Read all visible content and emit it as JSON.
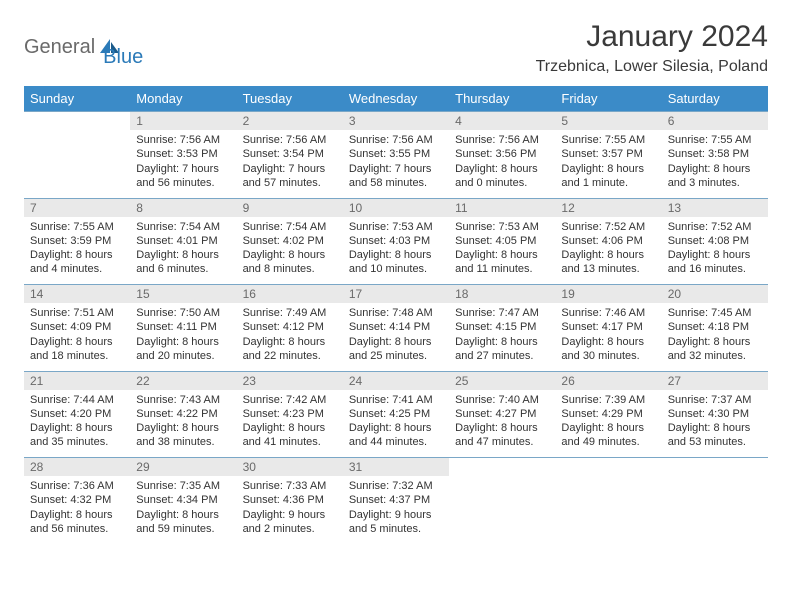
{
  "logo": {
    "text1": "General",
    "text2": "Blue"
  },
  "title": "January 2024",
  "location": "Trzebnica, Lower Silesia, Poland",
  "colors": {
    "header_bg": "#3b8bc8",
    "header_text": "#ffffff",
    "daynum_bg": "#e9e9e9",
    "daynum_text": "#6a6a6a",
    "border": "#7aa7c7",
    "body_text": "#333333",
    "logo_gray": "#6a6a6a",
    "logo_blue": "#2b7ab8",
    "page_bg": "#ffffff"
  },
  "typography": {
    "title_fontsize": 30,
    "location_fontsize": 16,
    "weekday_fontsize": 13,
    "daynum_fontsize": 12,
    "detail_fontsize": 11,
    "font_family": "Arial"
  },
  "weekdays": [
    "Sunday",
    "Monday",
    "Tuesday",
    "Wednesday",
    "Thursday",
    "Friday",
    "Saturday"
  ],
  "weeks": [
    [
      {
        "day": "",
        "sunrise": "",
        "sunset": "",
        "daylight": ""
      },
      {
        "day": "1",
        "sunrise": "Sunrise: 7:56 AM",
        "sunset": "Sunset: 3:53 PM",
        "daylight": "Daylight: 7 hours and 56 minutes."
      },
      {
        "day": "2",
        "sunrise": "Sunrise: 7:56 AM",
        "sunset": "Sunset: 3:54 PM",
        "daylight": "Daylight: 7 hours and 57 minutes."
      },
      {
        "day": "3",
        "sunrise": "Sunrise: 7:56 AM",
        "sunset": "Sunset: 3:55 PM",
        "daylight": "Daylight: 7 hours and 58 minutes."
      },
      {
        "day": "4",
        "sunrise": "Sunrise: 7:56 AM",
        "sunset": "Sunset: 3:56 PM",
        "daylight": "Daylight: 8 hours and 0 minutes."
      },
      {
        "day": "5",
        "sunrise": "Sunrise: 7:55 AM",
        "sunset": "Sunset: 3:57 PM",
        "daylight": "Daylight: 8 hours and 1 minute."
      },
      {
        "day": "6",
        "sunrise": "Sunrise: 7:55 AM",
        "sunset": "Sunset: 3:58 PM",
        "daylight": "Daylight: 8 hours and 3 minutes."
      }
    ],
    [
      {
        "day": "7",
        "sunrise": "Sunrise: 7:55 AM",
        "sunset": "Sunset: 3:59 PM",
        "daylight": "Daylight: 8 hours and 4 minutes."
      },
      {
        "day": "8",
        "sunrise": "Sunrise: 7:54 AM",
        "sunset": "Sunset: 4:01 PM",
        "daylight": "Daylight: 8 hours and 6 minutes."
      },
      {
        "day": "9",
        "sunrise": "Sunrise: 7:54 AM",
        "sunset": "Sunset: 4:02 PM",
        "daylight": "Daylight: 8 hours and 8 minutes."
      },
      {
        "day": "10",
        "sunrise": "Sunrise: 7:53 AM",
        "sunset": "Sunset: 4:03 PM",
        "daylight": "Daylight: 8 hours and 10 minutes."
      },
      {
        "day": "11",
        "sunrise": "Sunrise: 7:53 AM",
        "sunset": "Sunset: 4:05 PM",
        "daylight": "Daylight: 8 hours and 11 minutes."
      },
      {
        "day": "12",
        "sunrise": "Sunrise: 7:52 AM",
        "sunset": "Sunset: 4:06 PM",
        "daylight": "Daylight: 8 hours and 13 minutes."
      },
      {
        "day": "13",
        "sunrise": "Sunrise: 7:52 AM",
        "sunset": "Sunset: 4:08 PM",
        "daylight": "Daylight: 8 hours and 16 minutes."
      }
    ],
    [
      {
        "day": "14",
        "sunrise": "Sunrise: 7:51 AM",
        "sunset": "Sunset: 4:09 PM",
        "daylight": "Daylight: 8 hours and 18 minutes."
      },
      {
        "day": "15",
        "sunrise": "Sunrise: 7:50 AM",
        "sunset": "Sunset: 4:11 PM",
        "daylight": "Daylight: 8 hours and 20 minutes."
      },
      {
        "day": "16",
        "sunrise": "Sunrise: 7:49 AM",
        "sunset": "Sunset: 4:12 PM",
        "daylight": "Daylight: 8 hours and 22 minutes."
      },
      {
        "day": "17",
        "sunrise": "Sunrise: 7:48 AM",
        "sunset": "Sunset: 4:14 PM",
        "daylight": "Daylight: 8 hours and 25 minutes."
      },
      {
        "day": "18",
        "sunrise": "Sunrise: 7:47 AM",
        "sunset": "Sunset: 4:15 PM",
        "daylight": "Daylight: 8 hours and 27 minutes."
      },
      {
        "day": "19",
        "sunrise": "Sunrise: 7:46 AM",
        "sunset": "Sunset: 4:17 PM",
        "daylight": "Daylight: 8 hours and 30 minutes."
      },
      {
        "day": "20",
        "sunrise": "Sunrise: 7:45 AM",
        "sunset": "Sunset: 4:18 PM",
        "daylight": "Daylight: 8 hours and 32 minutes."
      }
    ],
    [
      {
        "day": "21",
        "sunrise": "Sunrise: 7:44 AM",
        "sunset": "Sunset: 4:20 PM",
        "daylight": "Daylight: 8 hours and 35 minutes."
      },
      {
        "day": "22",
        "sunrise": "Sunrise: 7:43 AM",
        "sunset": "Sunset: 4:22 PM",
        "daylight": "Daylight: 8 hours and 38 minutes."
      },
      {
        "day": "23",
        "sunrise": "Sunrise: 7:42 AM",
        "sunset": "Sunset: 4:23 PM",
        "daylight": "Daylight: 8 hours and 41 minutes."
      },
      {
        "day": "24",
        "sunrise": "Sunrise: 7:41 AM",
        "sunset": "Sunset: 4:25 PM",
        "daylight": "Daylight: 8 hours and 44 minutes."
      },
      {
        "day": "25",
        "sunrise": "Sunrise: 7:40 AM",
        "sunset": "Sunset: 4:27 PM",
        "daylight": "Daylight: 8 hours and 47 minutes."
      },
      {
        "day": "26",
        "sunrise": "Sunrise: 7:39 AM",
        "sunset": "Sunset: 4:29 PM",
        "daylight": "Daylight: 8 hours and 49 minutes."
      },
      {
        "day": "27",
        "sunrise": "Sunrise: 7:37 AM",
        "sunset": "Sunset: 4:30 PM",
        "daylight": "Daylight: 8 hours and 53 minutes."
      }
    ],
    [
      {
        "day": "28",
        "sunrise": "Sunrise: 7:36 AM",
        "sunset": "Sunset: 4:32 PM",
        "daylight": "Daylight: 8 hours and 56 minutes."
      },
      {
        "day": "29",
        "sunrise": "Sunrise: 7:35 AM",
        "sunset": "Sunset: 4:34 PM",
        "daylight": "Daylight: 8 hours and 59 minutes."
      },
      {
        "day": "30",
        "sunrise": "Sunrise: 7:33 AM",
        "sunset": "Sunset: 4:36 PM",
        "daylight": "Daylight: 9 hours and 2 minutes."
      },
      {
        "day": "31",
        "sunrise": "Sunrise: 7:32 AM",
        "sunset": "Sunset: 4:37 PM",
        "daylight": "Daylight: 9 hours and 5 minutes."
      },
      {
        "day": "",
        "sunrise": "",
        "sunset": "",
        "daylight": ""
      },
      {
        "day": "",
        "sunrise": "",
        "sunset": "",
        "daylight": ""
      },
      {
        "day": "",
        "sunrise": "",
        "sunset": "",
        "daylight": ""
      }
    ]
  ]
}
